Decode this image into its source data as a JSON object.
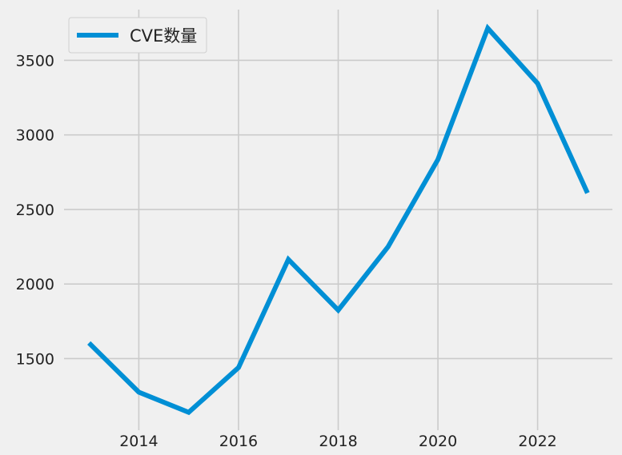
{
  "colors": {
    "background": "#f0f0f0",
    "grid": "#cbcbcb",
    "series": "#008fd5"
  },
  "chart_data": {
    "type": "line",
    "x": [
      2013,
      2014,
      2015,
      2016,
      2017,
      2018,
      2019,
      2020,
      2021,
      2022,
      2023
    ],
    "series": [
      {
        "name": "CVE数量",
        "values": [
          1605,
          1275,
          1140,
          1440,
          2165,
          1825,
          2250,
          2835,
          3715,
          3345,
          2610
        ]
      }
    ],
    "xticks": [
      "2014",
      "2016",
      "2018",
      "2020",
      "2022"
    ],
    "yticks": [
      "1500",
      "2000",
      "2500",
      "3000",
      "3500"
    ],
    "xlim": [
      2012.5,
      2023.5
    ],
    "ylim": [
      1020,
      3840
    ],
    "grid": true,
    "legend_position": "top-left",
    "title": "",
    "xlabel": "",
    "ylabel": ""
  }
}
